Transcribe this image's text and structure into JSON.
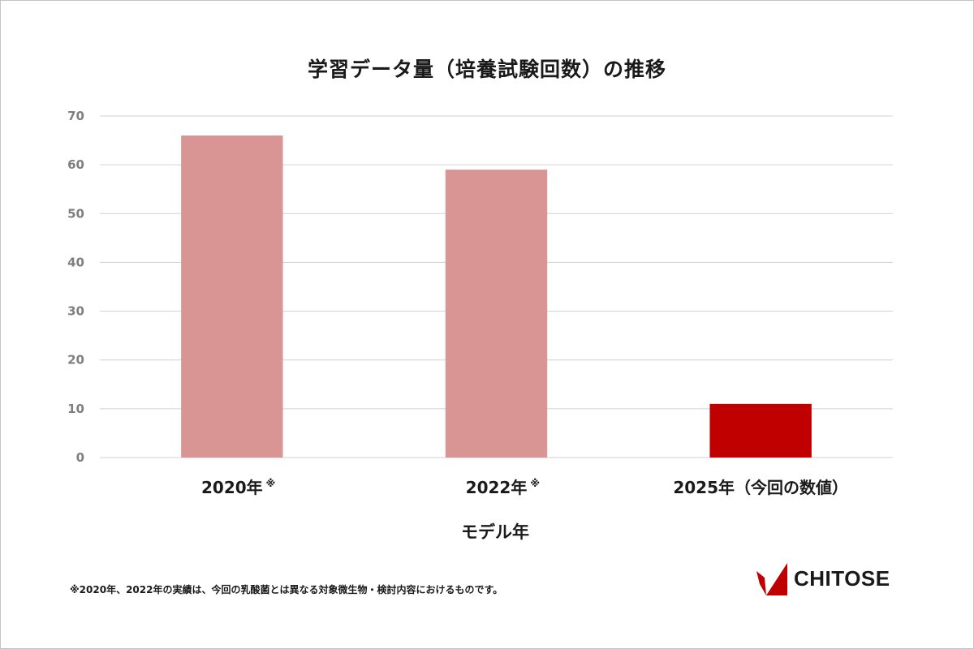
{
  "colors": {
    "past_bar": "#d99494",
    "current_bar": "#c00000",
    "grid": "#d0d0d0",
    "tick_text": "#7f7f7f",
    "text": "#1a1a1a"
  },
  "chart_data": {
    "type": "bar",
    "title": "学習データ量（培養試験回数）の推移",
    "xlabel": "モデル年",
    "ylabel": "",
    "categories": [
      "2020年",
      "2022年",
      "2025年（今回の数値）"
    ],
    "category_marks": [
      "※",
      "※",
      ""
    ],
    "values": [
      66,
      59,
      11
    ],
    "bar_colors": [
      "#d99494",
      "#d99494",
      "#c00000"
    ],
    "ylim": [
      0,
      70
    ],
    "yticks": [
      0,
      10,
      20,
      30,
      40,
      50,
      60,
      70
    ],
    "grid": true,
    "legend": "none"
  },
  "footnote": "※2020年、2022年の実績は、今回の乳酸菌とは異なる対象微生物・検討内容におけるものです。",
  "logo": {
    "text": "CHITOSE",
    "icon": "chitose-bird-logo-icon"
  }
}
